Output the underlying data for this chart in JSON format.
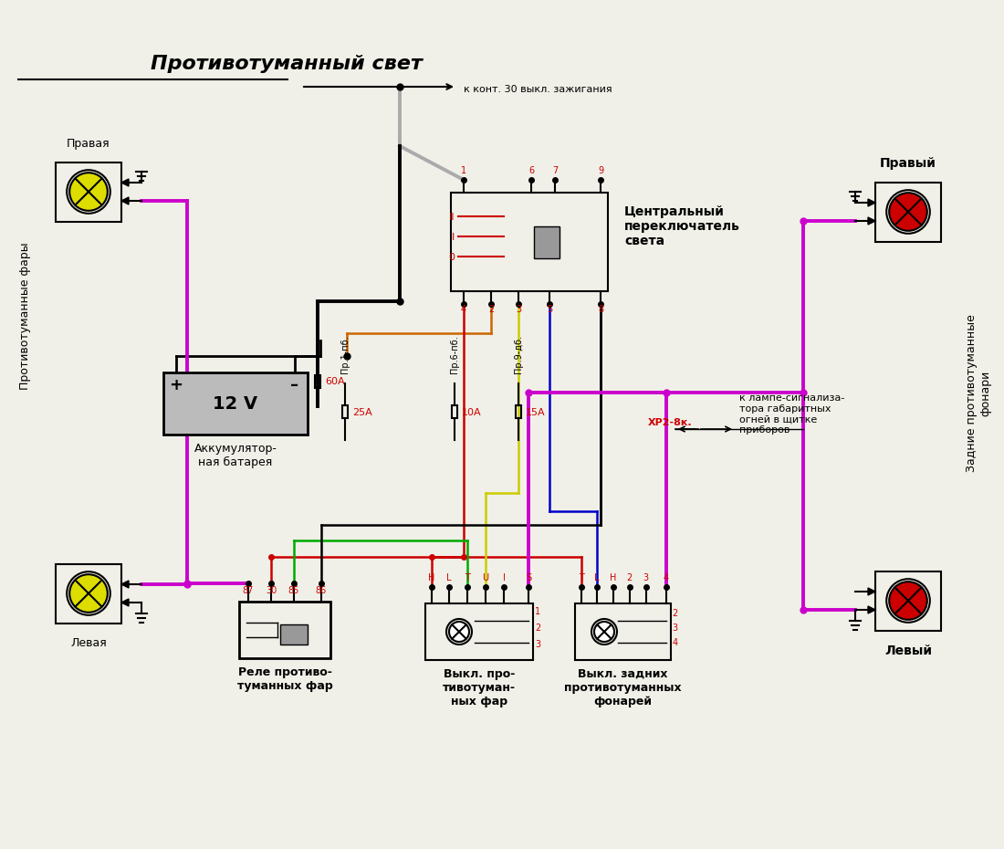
{
  "title": "Противотуманный свет",
  "bg_color": "#f0f0e8",
  "wire_colors": {
    "black": "#000000",
    "red": "#cc0000",
    "orange": "#cc6600",
    "magenta": "#cc00cc",
    "yellow": "#cccc00",
    "blue": "#0000cc",
    "green": "#00aa00",
    "gray": "#aaaaaa"
  },
  "labels": {
    "right_fog_lamp": "Правая",
    "left_fog_lamp": "Левая",
    "fog_lamps_label": "Противотуманные фары",
    "battery": "Аккумулятор-\nная батарея",
    "battery_voltage": "12 V",
    "relay_label": "Реле противо-\nтуманных фар",
    "central_switch": "Центральный\nпереключатель\nсвета",
    "switch_fog_label": "Выкл. про-\nтивотуман-\nных фар",
    "switch_rear_label": "Выкл. задних\nпротивотуманных\nфонарей",
    "right_rear": "Правый",
    "left_rear": "Левый",
    "rear_fog_label": "Задние противотуманные\nфонари",
    "fuse_60A": "60А",
    "fuse_25A": "25А",
    "fuse_10A": "10А",
    "fuse_15A": "15А",
    "fuse_pr1": "Пр.1-пб.",
    "fuse_pr6": "Пр.6-пб.",
    "fuse_pr9": "Пр.9-дб.",
    "to_contact": "к конт. 30 выкл. зажигания",
    "xp2_label": "ХР2-8к.",
    "xp2_desc": "к лампе-сигнализа-\nтора габаритных\nогней в щитке\nприборов",
    "relay_pins": [
      "87",
      "30",
      "85",
      "86"
    ],
    "switch_pins_fog": [
      "Н",
      "L",
      "T",
      "U",
      "I",
      "S"
    ],
    "switch_pins_rear": [
      "T",
      "L",
      "H",
      "2",
      "3",
      "4"
    ],
    "central_pins_left": [
      "II",
      "I",
      "0"
    ],
    "central_pins_bottom": [
      "4",
      "2",
      "3",
      "5",
      "8"
    ],
    "central_pins_top": [
      "1",
      "6",
      "7",
      "9"
    ]
  }
}
